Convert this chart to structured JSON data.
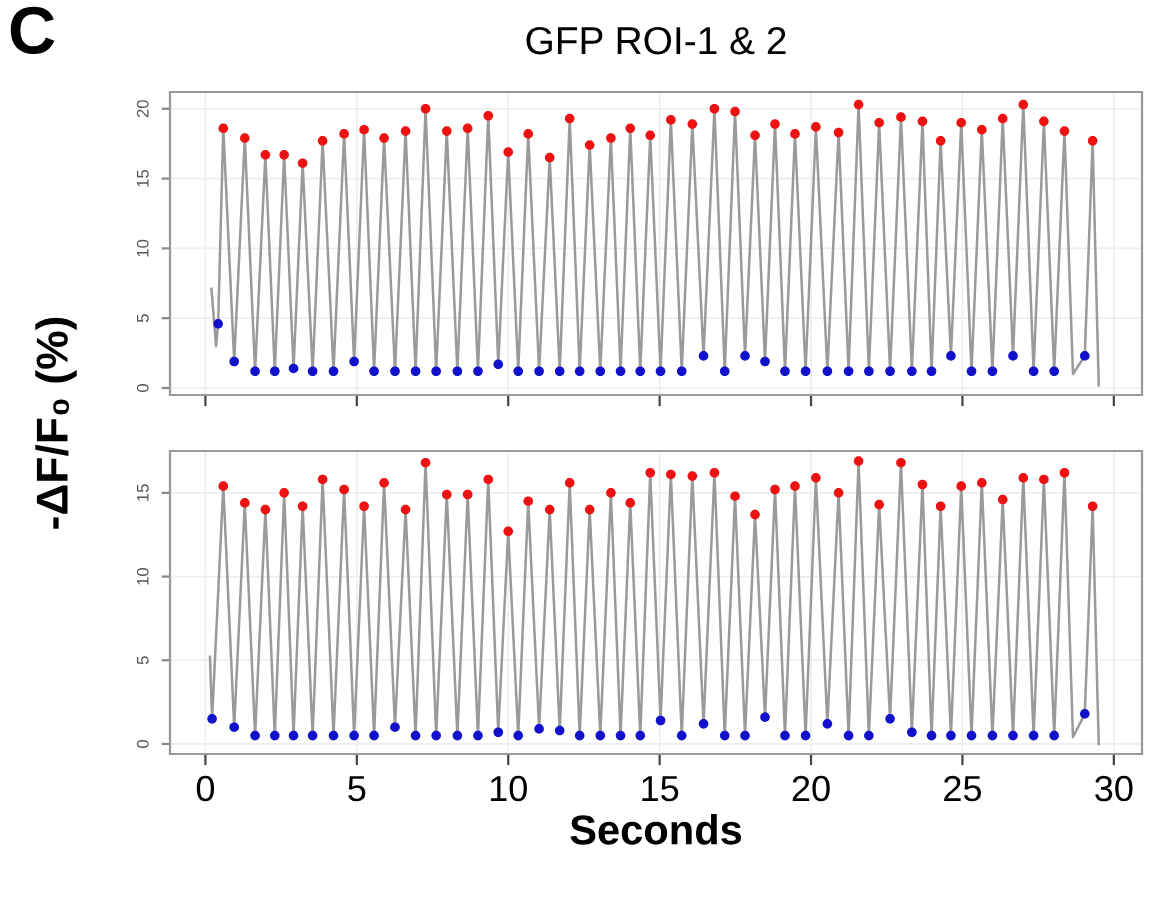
{
  "chart_data": [
    {
      "type": "line",
      "title": "GFP ROI-1 & 2",
      "ylabel": "-ΔF/F₀ (%)",
      "annotations": [
        "C"
      ],
      "xlim": [
        -1.17,
        30.93
      ],
      "xticks": [
        0,
        5,
        10,
        15,
        20,
        25,
        30
      ],
      "ylim": [
        -0.5,
        21.2
      ],
      "yticks": [
        0,
        5,
        10,
        15,
        20
      ],
      "tick_labels": "y",
      "grid": true,
      "series": [
        {
          "type": "line",
          "color": "#9a9a9a",
          "marker": "none",
          "x": [
            0.2,
            0.35,
            0.42,
            0.59,
            0.95,
            1.3,
            1.64,
            1.98,
            2.29,
            2.6,
            2.91,
            3.21,
            3.54,
            3.87,
            4.23,
            4.58,
            4.91,
            5.24,
            5.57,
            5.9,
            6.26,
            6.61,
            6.94,
            7.27,
            7.62,
            7.97,
            8.32,
            8.66,
            9.0,
            9.34,
            9.67,
            10.0,
            10.33,
            10.66,
            11.02,
            11.37,
            11.7,
            12.03,
            12.36,
            12.69,
            13.04,
            13.39,
            13.71,
            14.03,
            14.36,
            14.69,
            15.03,
            15.37,
            15.73,
            16.08,
            16.45,
            16.81,
            17.15,
            17.49,
            17.82,
            18.15,
            18.48,
            18.81,
            19.14,
            19.47,
            19.82,
            20.16,
            20.54,
            20.91,
            21.24,
            21.57,
            21.91,
            22.25,
            22.61,
            22.97,
            23.33,
            23.68,
            23.98,
            24.28,
            24.62,
            24.96,
            25.3,
            25.64,
            25.99,
            26.33,
            26.67,
            27.01,
            27.35,
            27.69,
            28.03,
            28.37,
            28.65,
            29.04,
            29.3,
            29.5
          ],
          "values": [
            7.1,
            3.0,
            4.6,
            18.6,
            1.9,
            17.9,
            1.2,
            16.7,
            1.2,
            16.7,
            1.4,
            16.1,
            1.2,
            17.7,
            1.2,
            18.2,
            1.9,
            18.5,
            1.2,
            17.9,
            1.2,
            18.4,
            1.2,
            20.0,
            1.2,
            18.4,
            1.2,
            18.6,
            1.2,
            19.5,
            1.7,
            16.9,
            1.2,
            18.2,
            1.2,
            16.5,
            1.2,
            19.3,
            1.2,
            17.4,
            1.2,
            17.9,
            1.2,
            18.6,
            1.2,
            18.1,
            1.2,
            19.2,
            1.2,
            18.9,
            2.3,
            20.0,
            1.2,
            19.8,
            2.3,
            18.1,
            1.9,
            18.9,
            1.2,
            18.2,
            1.2,
            18.7,
            1.2,
            18.3,
            1.2,
            20.3,
            1.2,
            19.0,
            1.2,
            19.4,
            1.2,
            19.1,
            1.2,
            17.7,
            2.3,
            19.0,
            1.2,
            18.5,
            1.2,
            19.3,
            2.3,
            20.3,
            1.2,
            19.1,
            1.2,
            18.4,
            1.0,
            2.3,
            17.7,
            0.2
          ]
        },
        {
          "type": "scatter",
          "color": "#ee1111",
          "marker": "circle",
          "x": [
            0.59,
            1.3,
            1.98,
            2.6,
            3.21,
            3.87,
            4.58,
            5.24,
            5.9,
            6.61,
            7.27,
            7.97,
            8.66,
            9.34,
            10.0,
            10.66,
            11.37,
            12.03,
            12.69,
            13.39,
            14.03,
            14.69,
            15.37,
            16.08,
            16.81,
            17.49,
            18.15,
            18.81,
            19.47,
            20.16,
            20.91,
            21.57,
            22.25,
            22.97,
            23.68,
            24.28,
            24.96,
            25.64,
            26.33,
            27.01,
            27.69,
            28.37,
            29.3
          ],
          "values": [
            18.6,
            17.9,
            16.7,
            16.7,
            16.1,
            17.7,
            18.2,
            18.5,
            17.9,
            18.4,
            20.0,
            18.4,
            18.6,
            19.5,
            16.9,
            18.2,
            16.5,
            19.3,
            17.4,
            17.9,
            18.6,
            18.1,
            19.2,
            18.9,
            20.0,
            19.8,
            18.1,
            18.9,
            18.2,
            18.7,
            18.3,
            20.3,
            19.0,
            19.4,
            19.1,
            17.7,
            19.0,
            18.5,
            19.3,
            20.3,
            19.1,
            18.4,
            17.7
          ]
        },
        {
          "type": "scatter",
          "color": "#1111cc",
          "marker": "circle",
          "x": [
            0.42,
            0.95,
            1.64,
            2.29,
            2.91,
            3.54,
            4.23,
            4.91,
            5.57,
            6.26,
            6.94,
            7.62,
            8.32,
            9.0,
            9.67,
            10.33,
            11.02,
            11.7,
            12.36,
            13.04,
            13.71,
            14.36,
            15.03,
            15.73,
            16.45,
            17.15,
            17.82,
            18.48,
            19.14,
            19.82,
            20.54,
            21.24,
            21.91,
            22.61,
            23.33,
            23.98,
            24.62,
            25.3,
            25.99,
            26.67,
            27.35,
            28.03,
            29.04
          ],
          "values": [
            4.6,
            1.9,
            1.2,
            1.2,
            1.4,
            1.2,
            1.2,
            1.9,
            1.2,
            1.2,
            1.2,
            1.2,
            1.2,
            1.2,
            1.7,
            1.2,
            1.2,
            1.2,
            1.2,
            1.2,
            1.2,
            1.2,
            1.2,
            1.2,
            2.3,
            1.2,
            2.3,
            1.9,
            1.2,
            1.2,
            1.2,
            1.2,
            1.2,
            1.2,
            1.2,
            1.2,
            2.3,
            1.2,
            1.2,
            2.3,
            1.2,
            1.2,
            2.3
          ]
        }
      ]
    },
    {
      "type": "line",
      "xlabel": "Seconds",
      "xlim": [
        -1.17,
        30.93
      ],
      "xticks": [
        0,
        5,
        10,
        15,
        20,
        25,
        30
      ],
      "ylim": [
        -0.6,
        17.5
      ],
      "yticks": [
        0,
        5,
        10,
        15
      ],
      "grid": true,
      "series": [
        {
          "type": "line",
          "color": "#9a9a9a",
          "marker": "none",
          "x": [
            0.15,
            0.22,
            0.59,
            0.95,
            1.3,
            1.64,
            1.98,
            2.29,
            2.6,
            2.91,
            3.21,
            3.54,
            3.87,
            4.23,
            4.58,
            4.91,
            5.24,
            5.57,
            5.9,
            6.26,
            6.61,
            6.94,
            7.27,
            7.62,
            7.97,
            8.32,
            8.66,
            9.0,
            9.34,
            9.67,
            10.0,
            10.33,
            10.66,
            11.02,
            11.37,
            11.7,
            12.03,
            12.36,
            12.69,
            13.04,
            13.39,
            13.71,
            14.03,
            14.36,
            14.69,
            15.03,
            15.37,
            15.73,
            16.08,
            16.45,
            16.81,
            17.15,
            17.49,
            17.82,
            18.15,
            18.48,
            18.81,
            19.14,
            19.47,
            19.82,
            20.16,
            20.54,
            20.91,
            21.24,
            21.57,
            21.91,
            22.25,
            22.61,
            22.97,
            23.33,
            23.68,
            23.98,
            24.28,
            24.62,
            24.96,
            25.3,
            25.64,
            25.99,
            26.33,
            26.67,
            27.01,
            27.35,
            27.69,
            28.03,
            28.37,
            28.65,
            29.04,
            29.3,
            29.5
          ],
          "values": [
            5.2,
            1.5,
            15.4,
            1.0,
            14.4,
            0.5,
            14.0,
            0.5,
            15.0,
            0.5,
            14.2,
            0.5,
            15.8,
            0.5,
            15.2,
            0.5,
            14.2,
            0.5,
            15.6,
            1.0,
            14.0,
            0.5,
            16.8,
            0.5,
            14.9,
            0.5,
            14.9,
            0.5,
            15.8,
            0.7,
            12.7,
            0.5,
            14.5,
            0.9,
            14.0,
            0.8,
            15.6,
            0.5,
            14.0,
            0.5,
            15.0,
            0.5,
            14.4,
            0.5,
            16.2,
            1.4,
            16.1,
            0.5,
            16.0,
            1.2,
            16.2,
            0.5,
            14.8,
            0.5,
            13.7,
            1.6,
            15.2,
            0.5,
            15.4,
            0.5,
            15.9,
            1.2,
            15.0,
            0.5,
            16.9,
            0.5,
            14.3,
            1.5,
            16.8,
            0.7,
            15.5,
            0.5,
            14.2,
            0.5,
            15.4,
            0.5,
            15.6,
            0.5,
            14.6,
            0.5,
            15.9,
            0.5,
            15.8,
            0.5,
            16.2,
            0.4,
            1.8,
            14.2,
            0.0
          ]
        },
        {
          "type": "scatter",
          "color": "#ee1111",
          "marker": "circle",
          "x": [
            0.59,
            1.3,
            1.98,
            2.6,
            3.21,
            3.87,
            4.58,
            5.24,
            5.9,
            6.61,
            7.27,
            7.97,
            8.66,
            9.34,
            10.0,
            10.66,
            11.37,
            12.03,
            12.69,
            13.39,
            14.03,
            14.69,
            15.37,
            16.08,
            16.81,
            17.49,
            18.15,
            18.81,
            19.47,
            20.16,
            20.91,
            21.57,
            22.25,
            22.97,
            23.68,
            24.28,
            24.96,
            25.64,
            26.33,
            27.01,
            27.69,
            28.37,
            29.3
          ],
          "values": [
            15.4,
            14.4,
            14.0,
            15.0,
            14.2,
            15.8,
            15.2,
            14.2,
            15.6,
            14.0,
            16.8,
            14.9,
            14.9,
            15.8,
            12.7,
            14.5,
            14.0,
            15.6,
            14.0,
            15.0,
            14.4,
            16.2,
            16.1,
            16.0,
            16.2,
            14.8,
            13.7,
            15.2,
            15.4,
            15.9,
            15.0,
            16.9,
            14.3,
            16.8,
            15.5,
            14.2,
            15.4,
            15.6,
            14.6,
            15.9,
            15.8,
            16.2,
            14.2
          ]
        },
        {
          "type": "scatter",
          "color": "#1111cc",
          "marker": "circle",
          "x": [
            0.22,
            0.95,
            1.64,
            2.29,
            2.91,
            3.54,
            4.23,
            4.91,
            5.57,
            6.26,
            6.94,
            7.62,
            8.32,
            9.0,
            9.67,
            10.33,
            11.02,
            11.7,
            12.36,
            13.04,
            13.71,
            14.36,
            15.03,
            15.73,
            16.45,
            17.15,
            17.82,
            18.48,
            19.14,
            19.82,
            20.54,
            21.24,
            21.91,
            22.61,
            23.33,
            23.98,
            24.62,
            25.3,
            25.99,
            26.67,
            27.35,
            28.03,
            29.04
          ],
          "values": [
            1.5,
            1.0,
            0.5,
            0.5,
            0.5,
            0.5,
            0.5,
            0.5,
            0.5,
            1.0,
            0.5,
            0.5,
            0.5,
            0.5,
            0.7,
            0.5,
            0.9,
            0.8,
            0.5,
            0.5,
            0.5,
            0.5,
            1.4,
            0.5,
            1.2,
            0.5,
            0.5,
            1.6,
            0.5,
            0.5,
            1.2,
            0.5,
            0.5,
            1.5,
            0.7,
            0.5,
            0.5,
            0.5,
            0.5,
            0.5,
            0.5,
            0.5,
            1.8
          ]
        }
      ]
    }
  ]
}
